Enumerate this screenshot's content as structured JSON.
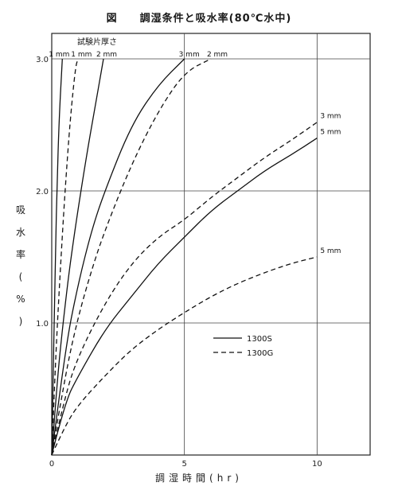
{
  "chart_data": {
    "type": "line",
    "title": "図　　調湿条件と吸水率(80℃水中)",
    "xlabel": "調湿時間(hr)",
    "ylabel": "吸水率(%)",
    "xlim": [
      0,
      12
    ],
    "ylim": [
      0,
      3.0
    ],
    "x_ticks": [
      "0",
      "5",
      "10"
    ],
    "y_ticks": [
      "1.0",
      "2.0",
      "3.0"
    ],
    "grid": true,
    "legend_position": "center-right",
    "series": [
      {
        "name": "1300S",
        "label": "1 mm",
        "style": "solid",
        "points": [
          [
            0,
            0
          ],
          [
            0.05,
            0.55
          ],
          [
            0.1,
            1.1
          ],
          [
            0.15,
            1.6
          ],
          [
            0.2,
            2.05
          ],
          [
            0.28,
            2.55
          ],
          [
            0.4,
            3.0
          ]
        ]
      },
      {
        "name": "1300G",
        "label": "1 mm",
        "style": "dashed",
        "points": [
          [
            0,
            0
          ],
          [
            0.1,
            0.5
          ],
          [
            0.2,
            0.95
          ],
          [
            0.35,
            1.5
          ],
          [
            0.5,
            2.0
          ],
          [
            0.7,
            2.55
          ],
          [
            0.9,
            2.95
          ],
          [
            1.0,
            3.0
          ]
        ]
      },
      {
        "name": "1300S",
        "label": "2 mm",
        "style": "solid",
        "points": [
          [
            0,
            0
          ],
          [
            0.2,
            0.55
          ],
          [
            0.4,
            0.95
          ],
          [
            0.6,
            1.3
          ],
          [
            0.8,
            1.6
          ],
          [
            1.0,
            1.87
          ],
          [
            1.3,
            2.25
          ],
          [
            1.6,
            2.6
          ],
          [
            1.95,
            3.0
          ]
        ]
      },
      {
        "name": "1300S",
        "label": "3 mm",
        "style": "solid",
        "points": [
          [
            0,
            0
          ],
          [
            0.5,
            0.8
          ],
          [
            1.0,
            1.3
          ],
          [
            1.5,
            1.7
          ],
          [
            2.0,
            2.0
          ],
          [
            3.0,
            2.5
          ],
          [
            4.0,
            2.8
          ],
          [
            5.0,
            3.0
          ]
        ]
      },
      {
        "name": "1300G",
        "label": "2 mm",
        "style": "dashed",
        "points": [
          [
            0,
            0
          ],
          [
            0.5,
            0.6
          ],
          [
            1.0,
            1.05
          ],
          [
            1.5,
            1.4
          ],
          [
            2.0,
            1.7
          ],
          [
            3.0,
            2.2
          ],
          [
            4.0,
            2.6
          ],
          [
            5.0,
            2.9
          ],
          [
            6.0,
            3.0
          ]
        ]
      },
      {
        "name": "1300G",
        "label": "3 mm",
        "style": "dashed",
        "points": [
          [
            0,
            0
          ],
          [
            0.5,
            0.45
          ],
          [
            1.0,
            0.75
          ],
          [
            2.0,
            1.15
          ],
          [
            3.0,
            1.45
          ],
          [
            4.0,
            1.65
          ],
          [
            5.0,
            1.78
          ],
          [
            6.0,
            1.95
          ],
          [
            7.0,
            2.1
          ],
          [
            8.0,
            2.25
          ],
          [
            9.0,
            2.38
          ],
          [
            10.0,
            2.52
          ]
        ]
      },
      {
        "name": "1300S",
        "label": "5 mm",
        "style": "solid",
        "points": [
          [
            0,
            0
          ],
          [
            0.5,
            0.4
          ],
          [
            1.0,
            0.6
          ],
          [
            2.0,
            0.95
          ],
          [
            3.0,
            1.2
          ],
          [
            4.0,
            1.45
          ],
          [
            5.0,
            1.65
          ],
          [
            6.0,
            1.85
          ],
          [
            7.0,
            2.0
          ],
          [
            8.0,
            2.15
          ],
          [
            9.0,
            2.27
          ],
          [
            10.0,
            2.4
          ]
        ]
      },
      {
        "name": "1300G",
        "label": "5 mm",
        "style": "dashed",
        "points": [
          [
            0,
            0
          ],
          [
            0.5,
            0.22
          ],
          [
            1.0,
            0.38
          ],
          [
            2.0,
            0.6
          ],
          [
            3.0,
            0.8
          ],
          [
            4.0,
            0.95
          ],
          [
            5.0,
            1.08
          ],
          [
            6.0,
            1.2
          ],
          [
            7.0,
            1.3
          ],
          [
            8.0,
            1.38
          ],
          [
            9.0,
            1.45
          ],
          [
            10.0,
            1.5
          ]
        ]
      }
    ],
    "legend": [
      {
        "name": "1300S",
        "style": "solid"
      },
      {
        "name": "1300G",
        "style": "dashed"
      }
    ],
    "annotation_header": "試験片厚さ"
  }
}
